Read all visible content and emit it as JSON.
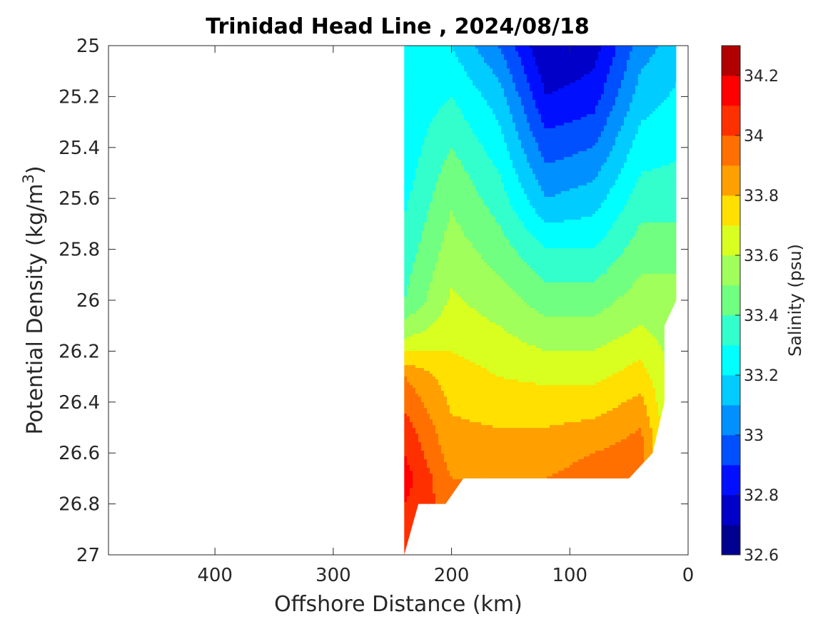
{
  "chart_data": {
    "type": "contour",
    "title": "Trinidad Head Line , 2024/08/18",
    "xlabel": "Offshore Distance (km)",
    "ylabel": "Potential Density (kg/m",
    "ylabel_sup": "3",
    "ylabel_close": ")",
    "xlim": [
      490,
      0
    ],
    "ylim": [
      27,
      25
    ],
    "x_direction": "reversed",
    "y_direction": "reversed",
    "xticks": [
      400,
      300,
      200,
      100,
      0
    ],
    "xtick_labels": [
      "400",
      "300",
      "200",
      "100",
      "0"
    ],
    "yticks": [
      25,
      25.2,
      25.4,
      25.6,
      25.8,
      26,
      26.2,
      26.4,
      26.6,
      26.8,
      27
    ],
    "ytick_labels": [
      "25",
      "25.2",
      "25.4",
      "25.6",
      "25.8",
      "26",
      "26.2",
      "26.4",
      "26.6",
      "26.8",
      "27"
    ],
    "grid": false,
    "colorbar": {
      "label": "Salinity (psu)",
      "min": 32.6,
      "max": 34.3,
      "step": 0.1,
      "ticks": [
        32.6,
        32.8,
        33,
        33.2,
        33.4,
        33.6,
        33.8,
        34,
        34.2
      ],
      "tick_labels": [
        "32.6",
        "32.8",
        "33",
        "33.2",
        "33.4",
        "33.6",
        "33.8",
        "34",
        "34.2"
      ],
      "colors": [
        "#000090",
        "#0000c8",
        "#0010ff",
        "#0050ff",
        "#0090ff",
        "#00ccff",
        "#00ffff",
        "#33ffcc",
        "#70ff80",
        "#a0ff5a",
        "#d8ff20",
        "#ffe000",
        "#ffa000",
        "#ff7000",
        "#ff3000",
        "#ff0000",
        "#b00000"
      ],
      "location": "right"
    },
    "stations_km": [
      240,
      200,
      160,
      120,
      80,
      40,
      10
    ],
    "data_extent": {
      "x_range_km": [
        240,
        10
      ],
      "sigma_min": 25,
      "bottom_outline": [
        {
          "x": 240,
          "sigma": 27
        },
        {
          "x": 228,
          "sigma": 26.8
        },
        {
          "x": 205,
          "sigma": 26.8
        },
        {
          "x": 190,
          "sigma": 26.7
        },
        {
          "x": 50,
          "sigma": 26.7
        },
        {
          "x": 30,
          "sigma": 26.6
        },
        {
          "x": 20,
          "sigma": 26.4
        },
        {
          "x": 20,
          "sigma": 26.1
        },
        {
          "x": 10,
          "sigma": 26
        }
      ]
    },
    "salinity_profiles": [
      {
        "x": 240,
        "sigma": [
          25,
          25.5,
          26,
          26.15,
          26.3,
          26.5,
          26.7,
          26.9,
          27
        ],
        "salinity": [
          33.2,
          33.25,
          33.4,
          33.6,
          33.9,
          34.05,
          34.15,
          34.05,
          34
        ]
      },
      {
        "x": 200,
        "sigma": [
          25,
          25.2,
          25.5,
          25.8,
          26.1,
          26.3,
          26.6,
          26.8
        ],
        "salinity": [
          33.2,
          33.3,
          33.45,
          33.55,
          33.65,
          33.75,
          33.85,
          33.95
        ]
      },
      {
        "x": 160,
        "sigma": [
          25,
          25.2,
          25.4,
          25.6,
          25.8,
          26,
          26.2,
          26.4,
          26.6,
          26.7
        ],
        "salinity": [
          33.0,
          33.15,
          33.25,
          33.35,
          33.45,
          33.55,
          33.65,
          33.75,
          33.85,
          33.9
        ]
      },
      {
        "x": 120,
        "sigma": [
          25,
          25.2,
          25.4,
          25.6,
          25.8,
          26,
          26.2,
          26.4,
          26.6,
          26.7
        ],
        "salinity": [
          32.7,
          32.8,
          32.95,
          33.1,
          33.3,
          33.45,
          33.6,
          33.75,
          33.85,
          33.9
        ]
      },
      {
        "x": 80,
        "sigma": [
          25,
          25.2,
          25.4,
          25.6,
          25.8,
          26,
          26.2,
          26.4,
          26.6,
          26.7
        ],
        "salinity": [
          32.75,
          32.85,
          33.0,
          33.15,
          33.3,
          33.45,
          33.6,
          33.75,
          33.9,
          33.95
        ]
      },
      {
        "x": 40,
        "sigma": [
          25,
          25.3,
          25.6,
          25.9,
          26.1,
          26.3,
          26.5,
          26.6
        ],
        "salinity": [
          33.05,
          33.2,
          33.35,
          33.5,
          33.6,
          33.75,
          33.9,
          33.95
        ]
      },
      {
        "x": 10,
        "sigma": [
          25,
          25.3,
          25.6,
          25.9,
          26
        ],
        "salinity": [
          33.15,
          33.25,
          33.35,
          33.5,
          33.55
        ]
      }
    ]
  }
}
